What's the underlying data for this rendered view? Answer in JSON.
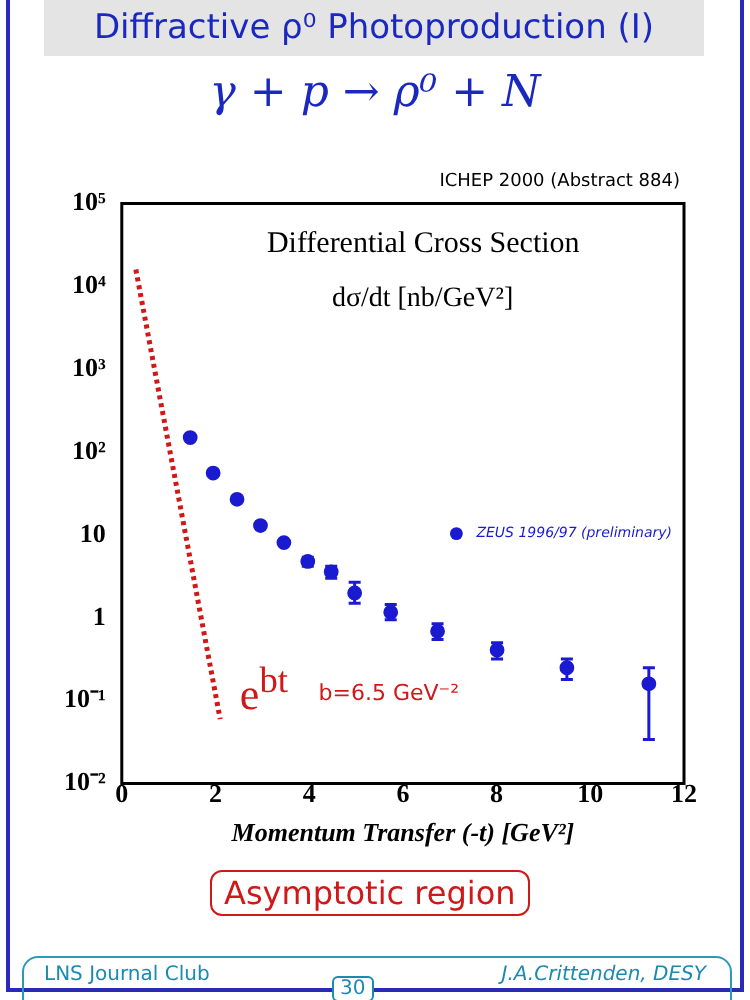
{
  "chart_data": {
    "type": "scatter",
    "title": "Diffractive ρ⁰ Photoproduction (I)",
    "subtitle": "γ + p → ρ⁰ + N",
    "xlabel": "Momentum Transfer (-t) [GeV²]",
    "annotations": [
      "ICHEP 2000 (Abstract 884)",
      "Differential Cross Section",
      "dσ/dt [nb/GeV²]",
      "e$^{bt}$",
      "b=6.5 GeV⁻²",
      "Asymptotic region",
      "LNS Journal Club",
      "J.A.Crittenden, DESY",
      "30"
    ],
    "xlim": [
      0,
      12
    ],
    "xticks": [
      0,
      2,
      4,
      6,
      8,
      10,
      12
    ],
    "log": "y",
    "ylim": [
      0.01,
      100000
    ],
    "yticks": [
      {
        "value": 0.01,
        "label": "10⁻²"
      },
      {
        "value": 0.1,
        "label": "10⁻¹"
      },
      1,
      10,
      {
        "value": 100,
        "label": "10²"
      },
      {
        "value": 1000,
        "label": "10³"
      },
      {
        "value": 10000,
        "label": "10⁴"
      },
      {
        "value": 100000,
        "label": "10⁵"
      }
    ],
    "grid": false,
    "legend": "right",
    "marker": "circle",
    "series": [
      {
        "name": "ZEUS 1996/97 (preliminary)",
        "color": "#1a1ad0",
        "x": [
          1.46,
          1.95,
          2.46,
          2.96,
          3.46,
          3.97,
          4.47,
          4.97,
          5.74,
          6.74,
          8.01,
          9.5,
          11.25
        ],
        "values": [
          150,
          56,
          27,
          13,
          8.1,
          4.8,
          3.6,
          2.0,
          1.17,
          0.69,
          0.41,
          0.25,
          0.16
        ],
        "errors": [
          null,
          null,
          null,
          null,
          null,
          0.6,
          0.6,
          [
            1.5,
            2.7
          ],
          [
            0.95,
            1.45
          ],
          [
            0.55,
            0.85
          ],
          [
            0.32,
            0.5
          ],
          [
            0.18,
            0.32
          ],
          [
            0.034,
            0.25
          ]
        ]
      },
      {
        "type": "line",
        "color": "#d01818",
        "x": [
          0.3,
          2.1
        ],
        "values": [
          16000,
          0.06
        ],
        "line_style": "dotted",
        "marker": "none"
      }
    ]
  }
}
